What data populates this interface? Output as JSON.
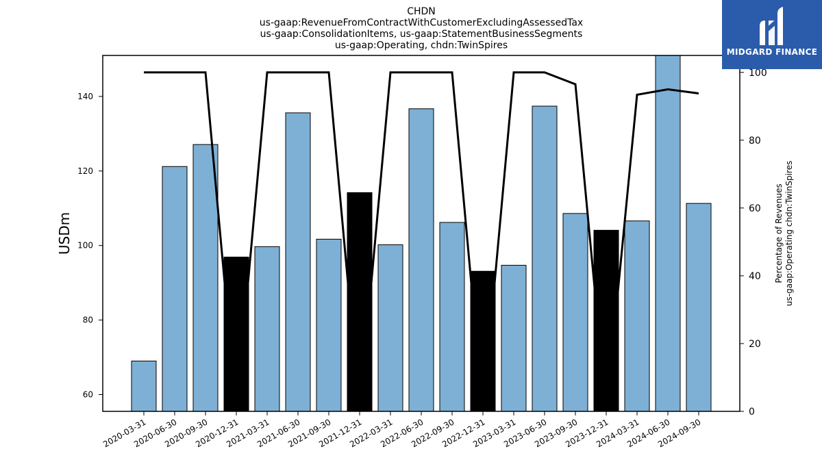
{
  "chart_data": {
    "type": "bar",
    "title_lines": [
      "CHDN",
      "us-gaap:RevenueFromContractWithCustomerExcludingAssessedTax",
      "us-gaap:ConsolidationItems, us-gaap:StatementBusinessSegments",
      "us-gaap:Operating, chdn:TwinSpires"
    ],
    "categories": [
      "2020-03-31",
      "2020-06-30",
      "2020-09-30",
      "2020-12-31",
      "2021-03-31",
      "2021-06-30",
      "2021-09-30",
      "2021-12-31",
      "2022-03-31",
      "2022-06-30",
      "2022-09-30",
      "2022-12-31",
      "2023-03-31",
      "2023-06-30",
      "2023-09-30",
      "2023-12-31",
      "2024-03-31",
      "2024-06-30",
      "2024-09-30"
    ],
    "series": [
      {
        "axis": "left",
        "kind": "bar",
        "values": [
          69.0,
          121.2,
          127.1,
          96.9,
          99.7,
          135.6,
          101.7,
          114.2,
          100.2,
          136.7,
          106.2,
          93.1,
          94.7,
          137.4,
          108.6,
          104.1,
          106.6,
          151.5,
          111.3
        ],
        "colors": [
          "#7eb0d5",
          "#7eb0d5",
          "#7eb0d5",
          "#000000",
          "#7eb0d5",
          "#7eb0d5",
          "#7eb0d5",
          "#000000",
          "#7eb0d5",
          "#7eb0d5",
          "#7eb0d5",
          "#000000",
          "#7eb0d5",
          "#7eb0d5",
          "#7eb0d5",
          "#000000",
          "#7eb0d5",
          "#7eb0d5",
          "#7eb0d5"
        ]
      },
      {
        "axis": "right",
        "kind": "line",
        "color": "#000000",
        "values": [
          100,
          100,
          100,
          0,
          100,
          100,
          100,
          0,
          100,
          100,
          100,
          0,
          100,
          100,
          96.5,
          0,
          93.4,
          95.0,
          93.8
        ]
      }
    ],
    "ylabel": "USDm",
    "ylabel_right": [
      "Percentage of Revenues",
      "us-gaap:Operating chdn:TwinSpires"
    ],
    "ylim": [
      55.5,
      151
    ],
    "ylim_right": [
      0,
      105
    ],
    "yticks": [
      60,
      80,
      100,
      120,
      140
    ],
    "yticks_right": [
      0,
      20,
      40,
      60,
      80,
      100
    ],
    "grid": false
  },
  "logo": {
    "text": "MIDGARD FINANCE",
    "bg_color": "#2b5cab"
  }
}
